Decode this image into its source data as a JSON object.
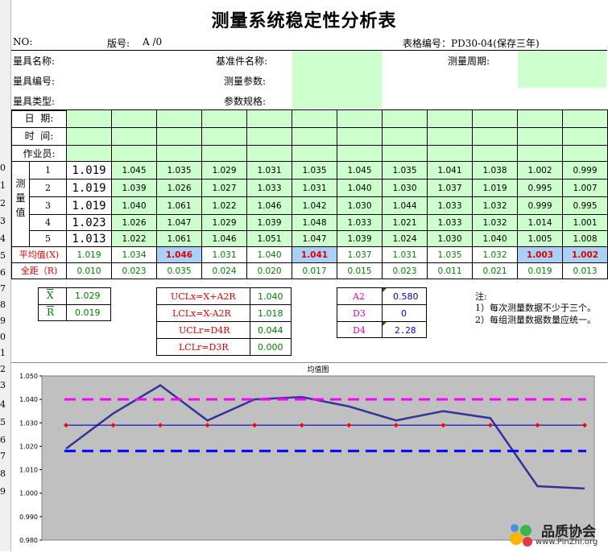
{
  "title": "测量系统稳定性分析表",
  "header": {
    "no_label": "NO:",
    "version_label": "版号:",
    "version_value": "A /0",
    "form_no_label": "表格编号：PD30-04(保存三年)"
  },
  "info": {
    "gauge_name": "量具名称:",
    "gauge_no": "量具编号:",
    "gauge_type": "量具类型:",
    "ref_name": "基准件名称:",
    "meas_param": "测量参数:",
    "param_spec": "参数规格:",
    "period": "测量周期:"
  },
  "labels": {
    "date": "日  期:",
    "time": "时  间:",
    "operator": "作业员:",
    "measured_value": "测\n量\n值",
    "avg": "平均值(X)",
    "range": "全距（R)"
  },
  "row_numbers": [
    "1",
    "2",
    "3",
    "4",
    "5"
  ],
  "left_col": [
    "1.019",
    "1.019",
    "1.019",
    "1.023",
    "1.013"
  ],
  "readings": [
    [
      "1.045",
      "1.035",
      "1.029",
      "1.031",
      "1.035",
      "1.045",
      "1.035",
      "1.041",
      "1.038",
      "1.002",
      "0.999"
    ],
    [
      "1.039",
      "1.026",
      "1.027",
      "1.033",
      "1.031",
      "1.040",
      "1.030",
      "1.037",
      "1.019",
      "0.995",
      "1.007"
    ],
    [
      "1.040",
      "1.061",
      "1.022",
      "1.046",
      "1.042",
      "1.030",
      "1.044",
      "1.033",
      "1.032",
      "0.999",
      "0.995"
    ],
    [
      "1.026",
      "1.047",
      "1.029",
      "1.039",
      "1.048",
      "1.033",
      "1.021",
      "1.033",
      "1.032",
      "1.014",
      "1.001"
    ],
    [
      "1.022",
      "1.061",
      "1.046",
      "1.051",
      "1.047",
      "1.039",
      "1.024",
      "1.030",
      "1.040",
      "1.005",
      "1.008"
    ]
  ],
  "averages": [
    "1.019",
    "1.034",
    "1.046",
    "1.031",
    "1.040",
    "1.041",
    "1.037",
    "1.031",
    "1.035",
    "1.032",
    "1.003",
    "1.002"
  ],
  "avg_highlight": [
    false,
    false,
    true,
    false,
    false,
    true,
    false,
    false,
    false,
    false,
    true,
    true
  ],
  "ranges": [
    "0.010",
    "0.023",
    "0.035",
    "0.024",
    "0.020",
    "0.017",
    "0.015",
    "0.023",
    "0.011",
    "0.021",
    "0.019",
    "0.013"
  ],
  "summary": {
    "xbar_label": "X",
    "xbar_value": "1.029",
    "rbar_label": "R",
    "rbar_value": "0.019",
    "uclx_label": "UCLx=X+A2R",
    "uclx_value": "1.040",
    "lclx_label": "LCLx=X-A2R",
    "lclx_value": "1.018",
    "uclr_label": "UCLr=D4R",
    "uclr_value": "0.044",
    "lclr_label": "LCLr=D3R",
    "lclr_value": "0.000",
    "a2_label": "A2",
    "a2_value": "0.580",
    "d3_label": "D3",
    "d3_value": "0",
    "d4_label": "D4",
    "d4_value": "2.28"
  },
  "notes": {
    "head": "注:",
    "n1": "1）每次测量数据不少于三个。",
    "n2": "2）每组测量数据数量应统一。"
  },
  "row_headers": [
    "0",
    "1",
    "2",
    "3",
    "4",
    "5",
    "6",
    "7",
    "8",
    "9",
    "0",
    "1",
    "2",
    "3",
    "4",
    "5",
    "6",
    "7",
    "8",
    "9"
  ],
  "chart_data": {
    "type": "line",
    "title": "均值图",
    "ylim": [
      0.98,
      1.05
    ],
    "yticks": [
      "1.050",
      "1.040",
      "1.030",
      "1.020",
      "1.010",
      "1.000",
      "0.990",
      "0.980"
    ],
    "x": [
      1,
      2,
      3,
      4,
      5,
      6,
      7,
      8,
      9,
      10,
      11,
      12
    ],
    "series": [
      {
        "name": "",
        "color": "#333399",
        "values": [
          1.019,
          1.034,
          1.046,
          1.031,
          1.04,
          1.041,
          1.037,
          1.031,
          1.035,
          1.032,
          1.003,
          1.002
        ]
      },
      {
        "name": "",
        "color": "#ff00ff",
        "dashed": true,
        "values": [
          1.04,
          1.04,
          1.04,
          1.04,
          1.04,
          1.04,
          1.04,
          1.04,
          1.04,
          1.04,
          1.04,
          1.04
        ]
      },
      {
        "name": "",
        "color": "#0000ff",
        "dashed": true,
        "values": [
          1.018,
          1.018,
          1.018,
          1.018,
          1.018,
          1.018,
          1.018,
          1.018,
          1.018,
          1.018,
          1.018,
          1.018
        ]
      },
      {
        "name": "",
        "color": "#0000cc",
        "markers": "#ff0000",
        "values": [
          1.029,
          1.029,
          1.029,
          1.029,
          1.029,
          1.029,
          1.029,
          1.029,
          1.029,
          1.029,
          1.029,
          1.029
        ]
      }
    ],
    "grid": false,
    "background": "#c0c0c0"
  },
  "watermark": {
    "text1": "品质协会",
    "text2": "www.PinZhi.org"
  }
}
